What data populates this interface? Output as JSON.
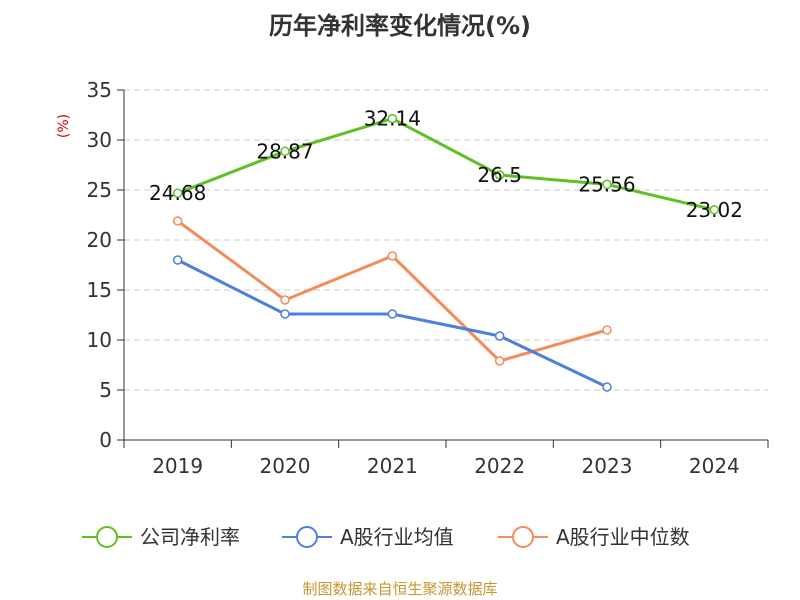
{
  "title": "历年净利率变化情况(%)",
  "source": "制图数据来自恒生聚源数据库",
  "colors": {
    "company": "#5ec024",
    "industry_avg": "#4e7fdc",
    "industry_median": "#f48c5a",
    "source": "#c8952e",
    "unit": "#d40000"
  },
  "chart_data": {
    "type": "line",
    "title": "历年净利率变化情况(%)",
    "ylabel": "(%)",
    "ylim": [
      0,
      35
    ],
    "yticks": [
      "0",
      "5",
      "10",
      "15",
      "20",
      "25",
      "30",
      "35"
    ],
    "categories": [
      "2019",
      "2020",
      "2021",
      "2022",
      "2023",
      "2024"
    ],
    "grid": true,
    "legend_position": "bottom",
    "series": [
      {
        "name": "公司净利率",
        "color": "#5ec024",
        "values": [
          24.68,
          28.87,
          32.14,
          26.5,
          25.56,
          23.02
        ],
        "labels": [
          "24.68",
          "28.87",
          "32.14",
          "26.5",
          "25.56",
          "23.02"
        ]
      },
      {
        "name": "A股行业均值",
        "color": "#4e7fdc",
        "values": [
          18.0,
          12.6,
          12.6,
          10.4,
          5.3,
          null
        ]
      },
      {
        "name": "A股行业中位数",
        "color": "#f48c5a",
        "values": [
          21.9,
          14.0,
          18.4,
          7.9,
          11.0,
          null
        ]
      }
    ]
  }
}
